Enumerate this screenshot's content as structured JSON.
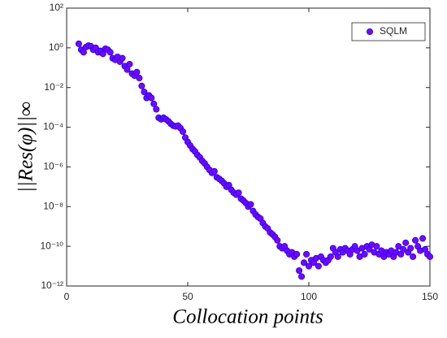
{
  "chart_data": {
    "type": "scatter",
    "xlabel": "Collocation points",
    "ylabel": "||Res(φ)||∞",
    "log_y": true,
    "legend": "upper right",
    "xlim": [
      0,
      150
    ],
    "xticks": [
      0,
      50,
      100,
      150
    ],
    "ylim": [
      1e-12,
      100
    ],
    "yticks": [
      {
        "value": 100,
        "label": "10²"
      },
      {
        "value": 1,
        "label": "10⁰"
      },
      {
        "value": 0.01,
        "label": "10⁻²"
      },
      {
        "value": 0.0001,
        "label": "10⁻⁴"
      },
      {
        "value": 1e-06,
        "label": "10⁻⁶"
      },
      {
        "value": 1e-08,
        "label": "10⁻⁸"
      },
      {
        "value": 1e-10,
        "label": "10⁻¹⁰"
      },
      {
        "value": 1e-12,
        "label": "10⁻¹²"
      }
    ],
    "series": [
      {
        "name": "SQLM",
        "color": "#8000ff",
        "edge_color": "#0000ff",
        "x": [
          5,
          6,
          7,
          8,
          9,
          10,
          11,
          12,
          13,
          14,
          15,
          16,
          17,
          18,
          19,
          20,
          21,
          22,
          23,
          24,
          25,
          26,
          27,
          28,
          29,
          30,
          31,
          32,
          33,
          34,
          35,
          36,
          37,
          38,
          39,
          40,
          41,
          42,
          43,
          44,
          45,
          46,
          47,
          48,
          49,
          50,
          51,
          52,
          53,
          54,
          55,
          56,
          57,
          58,
          59,
          60,
          61,
          62,
          63,
          64,
          65,
          66,
          67,
          68,
          69,
          70,
          71,
          72,
          73,
          74,
          75,
          76,
          77,
          78,
          79,
          80,
          81,
          82,
          83,
          84,
          85,
          86,
          87,
          88,
          89,
          90,
          91,
          92,
          93,
          94,
          95,
          96,
          97,
          98,
          99,
          100,
          101,
          102,
          103,
          104,
          105,
          106,
          107,
          108,
          109,
          110,
          111,
          112,
          113,
          114,
          115,
          116,
          117,
          118,
          119,
          120,
          121,
          122,
          123,
          124,
          125,
          126,
          127,
          128,
          129,
          130,
          131,
          132,
          133,
          134,
          135,
          136,
          137,
          138,
          139,
          140,
          141,
          142,
          143,
          144,
          145,
          146,
          147,
          148,
          149,
          150
        ],
        "values": [
          1.6,
          0.8,
          0.6,
          1.1,
          1.3,
          1.2,
          0.8,
          1.0,
          0.6,
          0.7,
          0.5,
          0.9,
          0.8,
          0.6,
          0.3,
          0.25,
          0.35,
          0.2,
          0.3,
          0.12,
          0.08,
          0.15,
          0.05,
          0.04,
          0.06,
          0.03,
          0.012,
          0.006,
          0.003,
          0.004,
          0.003,
          0.0015,
          0.0008,
          0.0003,
          0.00025,
          0.0003,
          0.00025,
          0.0002,
          0.00015,
          0.00012,
          0.00011,
          0.00012,
          9e-05,
          6e-05,
          3e-05,
          1.8e-05,
          1.2e-05,
          8e-06,
          6e-06,
          4e-06,
          3e-06,
          2e-06,
          1.5e-06,
          1e-06,
          7e-07,
          5e-07,
          6e-07,
          3e-07,
          2.5e-07,
          2e-07,
          1.5e-07,
          1e-07,
          1.2e-07,
          7e-08,
          5e-08,
          4e-08,
          5e-08,
          2.5e-08,
          2e-08,
          1.5e-08,
          1e-08,
          1.3e-08,
          6e-09,
          4e-09,
          3e-09,
          2.5e-09,
          1.5e-09,
          1e-09,
          8e-10,
          5e-10,
          4e-10,
          3e-10,
          2e-10,
          1e-10,
          8e-11,
          1e-10,
          6e-11,
          4e-11,
          5e-11,
          3e-11,
          4e-11,
          6e-12,
          3e-12,
          1.5e-11,
          4e-11,
          1e-11,
          2e-11,
          1.5e-11,
          2.5e-11,
          1e-11,
          3e-11,
          2e-11,
          1.5e-11,
          2e-11,
          3e-11,
          8e-11,
          5e-11,
          3e-11,
          7e-11,
          5e-11,
          8e-11,
          6e-11,
          4e-11,
          7e-11,
          1e-10,
          6e-11,
          3e-11,
          8e-11,
          4e-11,
          1e-10,
          7e-11,
          1.2e-10,
          5e-11,
          1e-10,
          4e-11,
          6e-11,
          3e-11,
          5e-11,
          4e-11,
          6e-11,
          3e-11,
          5e-11,
          1e-10,
          4e-11,
          7e-11,
          1.5e-10,
          5e-11,
          8e-11,
          3e-11,
          2e-10,
          1e-10,
          6e-11,
          2.5e-10,
          7e-11,
          4e-11,
          3e-11
        ]
      }
    ]
  }
}
